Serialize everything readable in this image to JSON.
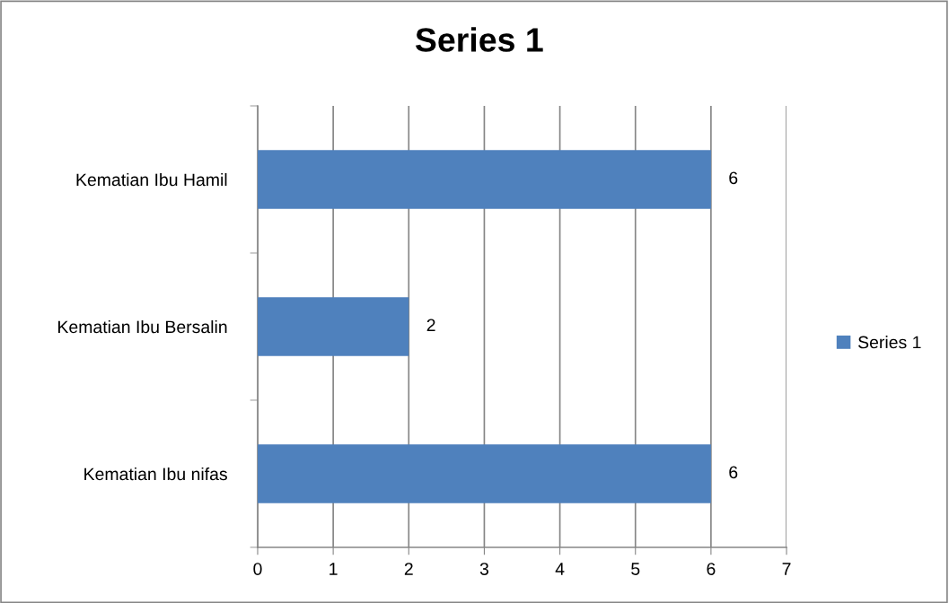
{
  "chart_data": {
    "type": "bar",
    "orientation": "horizontal",
    "title": "Series 1",
    "categories": [
      "Kematian Ibu Hamil",
      "Kematian Ibu Bersalin",
      "Kematian Ibu nifas"
    ],
    "series": [
      {
        "name": "Series 1",
        "color": "#4f81bd",
        "values": [
          6,
          2,
          6
        ]
      }
    ],
    "xlim": [
      0,
      7
    ],
    "xticks": [
      0,
      1,
      2,
      3,
      4,
      5,
      6,
      7
    ],
    "grid": "x",
    "legend": "right",
    "data_labels": true
  }
}
